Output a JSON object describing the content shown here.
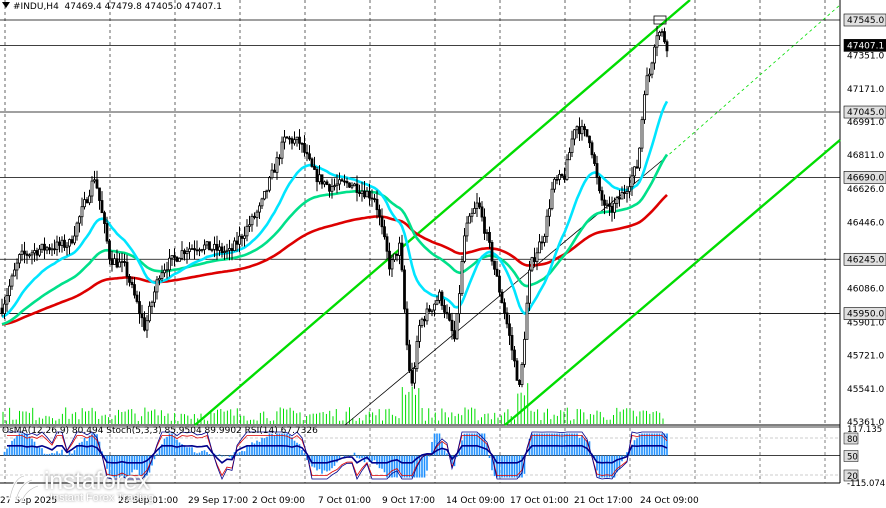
{
  "header": {
    "symbol": "#INDU,H4",
    "ohlc": "47469.4 47479.8 47405.0 47407.1"
  },
  "indicator_header": {
    "osma": "OsMA(12,26,9) 80.494",
    "stoch": "Stoch(5,3,3) 85.9504 89.9902",
    "rsi": "RSI(14) 67.7326"
  },
  "watermark": {
    "brand": "instaforex",
    "tagline": "Instant Forex Trading"
  },
  "colors": {
    "price": "#000000",
    "channel": "#00dd00",
    "ema_fast": "#00e5ff",
    "ema_mid": "#00e08a",
    "ema_slow": "#dd0000",
    "highlight_box": "#000000",
    "osma": "#1e90ff",
    "stoch_main": "#00008b",
    "stoch_signal": "#dd0000",
    "rsi": "#00008b"
  },
  "chart_data": {
    "type": "candlestick",
    "title": "#INDU,H4",
    "price_axis": {
      "ticks": [
        47351.0,
        47171.0,
        46991.0,
        46811.0,
        46626.0,
        46446.0,
        46086.0,
        45901.0,
        45721.0,
        45541.0,
        45361.0
      ],
      "highlighted_levels": [
        47545.0,
        47407.1,
        47045.0,
        46690.0,
        46245.0,
        45950.0
      ],
      "current_price": 47407.1,
      "ylim": [
        45340,
        47620
      ]
    },
    "time_axis": {
      "ticks": [
        "27 Sep 2025",
        "26 Sep 01:00",
        "29 Sep 17:00",
        "2 Oct 09:00",
        "7 Oct 01:00",
        "9 Oct 17:00",
        "14 Oct 09:00",
        "17 Oct 01:00",
        "21 Oct 17:00",
        "24 Oct 09:00"
      ]
    },
    "indicator_axis": {
      "ticks": [
        "117.135",
        "80",
        "50",
        "20",
        "-115.074"
      ]
    },
    "series": [
      {
        "name": "#INDU,H4",
        "kind": "candles"
      },
      {
        "kind": "ema_fast"
      },
      {
        "kind": "ema_mid"
      },
      {
        "kind": "ema_slow"
      }
    ],
    "grid": true
  }
}
